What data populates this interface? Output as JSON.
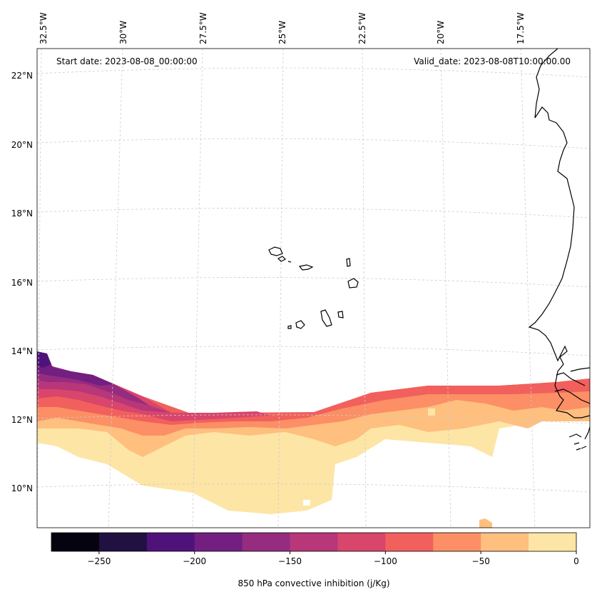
{
  "map": {
    "start_date": "Start date: 2023-08-08_00:00:00",
    "valid_date": "Valid_date: 2023-08-08T10:00:00.00",
    "lon_labels": [
      "32.5°W",
      "30°W",
      "27.5°W",
      "25°W",
      "22.5°W",
      "20°W",
      "17.5°W"
    ],
    "lat_labels": [
      "22°N",
      "20°N",
      "18°N",
      "16°N",
      "14°N",
      "12°N",
      "10°N"
    ],
    "variable_label": "850 hPa convective inhibition (j/Kg)"
  },
  "colorbar": {
    "colors": [
      "#05030f",
      "#201142",
      "#4f127b",
      "#721f81",
      "#962c80",
      "#b73779",
      "#d9466b",
      "#f1605d",
      "#fc8f65",
      "#febf7f",
      "#fde5a5"
    ],
    "ticks": [
      "−250",
      "−200",
      "−150",
      "−100",
      "−50",
      "0"
    ],
    "tick_values": [
      -250,
      -200,
      -150,
      -100,
      -50,
      0
    ],
    "min": -275,
    "max": 0
  },
  "colors": {
    "gridline": "#cccccc",
    "coast": "#000000"
  }
}
